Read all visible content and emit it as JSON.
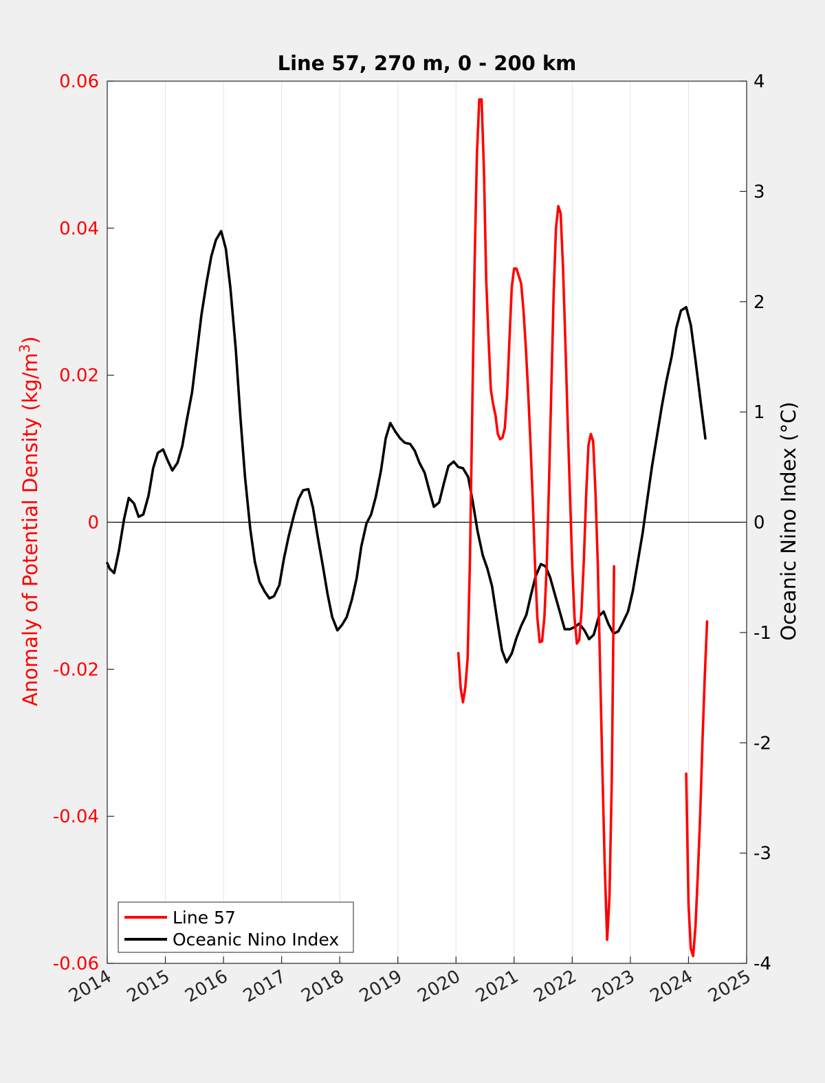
{
  "chart_data": {
    "type": "line",
    "title": "Line 57, 270 m, 0 - 200 km",
    "ylabel_left": "Anomaly of Potential Density (kg/m",
    "ylabel_left_sup": "3",
    "ylabel_left_close": ")",
    "ylabel_right": "Oceanic Nino Index (°C)",
    "xlim": [
      2014,
      2025
    ],
    "ylim_left": [
      -0.06,
      0.06
    ],
    "ylim_right": [
      -4,
      4
    ],
    "x_ticks": [
      "2014",
      "2015",
      "2016",
      "2017",
      "2018",
      "2019",
      "2020",
      "2021",
      "2022",
      "2023",
      "2024",
      "2025"
    ],
    "y_left_ticks": [
      "-0.06",
      "-0.04",
      "-0.02",
      "0",
      "0.02",
      "0.04",
      "0.06"
    ],
    "y_right_ticks": [
      "-4",
      "-3",
      "-2",
      "-1",
      "0",
      "1",
      "2",
      "3",
      "4"
    ],
    "grid_x": true,
    "zero_line": true,
    "legend_position": "bottom-left",
    "colors": {
      "line57": "#ff0000",
      "oni": "#000000",
      "left_axis": "#ff0000",
      "right_axis": "#000000"
    },
    "series": [
      {
        "name": "Line 57",
        "axis": "left",
        "segments": [
          [
            [
              2020.04,
              -0.0178
            ],
            [
              2020.08,
              -0.0225
            ],
            [
              2020.12,
              -0.0245
            ],
            [
              2020.16,
              -0.0225
            ],
            [
              2020.2,
              -0.0185
            ],
            [
              2020.24,
              -0.005
            ],
            [
              2020.28,
              0.015
            ],
            [
              2020.32,
              0.035
            ],
            [
              2020.36,
              0.05
            ],
            [
              2020.4,
              0.0575
            ],
            [
              2020.44,
              0.0575
            ],
            [
              2020.48,
              0.048
            ],
            [
              2020.52,
              0.033
            ],
            [
              2020.56,
              0.025
            ],
            [
              2020.6,
              0.018
            ],
            [
              2020.64,
              0.016
            ],
            [
              2020.68,
              0.0145
            ],
            [
              2020.72,
              0.012
            ],
            [
              2020.76,
              0.0113
            ],
            [
              2020.8,
              0.0115
            ],
            [
              2020.84,
              0.0128
            ],
            [
              2020.88,
              0.0175
            ],
            [
              2020.92,
              0.025
            ],
            [
              2020.96,
              0.032
            ],
            [
              2021.0,
              0.0345
            ],
            [
              2021.04,
              0.0345
            ],
            [
              2021.08,
              0.0335
            ],
            [
              2021.12,
              0.0325
            ],
            [
              2021.16,
              0.029
            ],
            [
              2021.2,
              0.024
            ],
            [
              2021.24,
              0.018
            ],
            [
              2021.28,
              0.011
            ],
            [
              2021.32,
              0.003
            ],
            [
              2021.36,
              -0.006
            ],
            [
              2021.4,
              -0.013
            ],
            [
              2021.44,
              -0.0163
            ],
            [
              2021.48,
              -0.0162
            ],
            [
              2021.52,
              -0.013
            ],
            [
              2021.56,
              -0.006
            ],
            [
              2021.6,
              0.005
            ],
            [
              2021.64,
              0.018
            ],
            [
              2021.68,
              0.031
            ],
            [
              2021.72,
              0.04
            ],
            [
              2021.76,
              0.043
            ],
            [
              2021.8,
              0.042
            ],
            [
              2021.84,
              0.035
            ],
            [
              2021.88,
              0.025
            ],
            [
              2021.92,
              0.014
            ],
            [
              2021.96,
              0.004
            ],
            [
              2022.0,
              -0.006
            ],
            [
              2022.04,
              -0.013
            ],
            [
              2022.08,
              -0.0165
            ],
            [
              2022.12,
              -0.016
            ],
            [
              2022.16,
              -0.012
            ],
            [
              2022.2,
              -0.005
            ],
            [
              2022.24,
              0.004
            ],
            [
              2022.28,
              0.0105
            ],
            [
              2022.32,
              0.012
            ],
            [
              2022.36,
              0.011
            ],
            [
              2022.4,
              0.004
            ],
            [
              2022.44,
              -0.006
            ],
            [
              2022.48,
              -0.02
            ],
            [
              2022.52,
              -0.034
            ],
            [
              2022.56,
              -0.047
            ],
            [
              2022.6,
              -0.0568
            ],
            [
              2022.64,
              -0.051
            ],
            [
              2022.68,
              -0.035
            ],
            [
              2022.72,
              -0.006
            ]
          ],
          [
            [
              2023.96,
              -0.0342
            ],
            [
              2024.0,
              -0.052
            ],
            [
              2024.04,
              -0.058
            ],
            [
              2024.08,
              -0.059
            ],
            [
              2024.12,
              -0.055
            ],
            [
              2024.16,
              -0.048
            ],
            [
              2024.2,
              -0.04
            ],
            [
              2024.24,
              -0.03
            ],
            [
              2024.28,
              -0.021
            ],
            [
              2024.32,
              -0.0135
            ]
          ]
        ]
      },
      {
        "name": "Oceanic Nino Index",
        "axis": "right",
        "segments": [
          [
            [
              2014.0,
              -0.37
            ],
            [
              2014.04,
              -0.42
            ],
            [
              2014.12,
              -0.46
            ],
            [
              2014.2,
              -0.26
            ],
            [
              2014.29,
              0.03
            ],
            [
              2014.37,
              0.22
            ],
            [
              2014.46,
              0.17
            ],
            [
              2014.54,
              0.05
            ],
            [
              2014.62,
              0.07
            ],
            [
              2014.71,
              0.24
            ],
            [
              2014.79,
              0.49
            ],
            [
              2014.87,
              0.63
            ],
            [
              2014.96,
              0.66
            ],
            [
              2015.04,
              0.56
            ],
            [
              2015.12,
              0.47
            ],
            [
              2015.21,
              0.54
            ],
            [
              2015.29,
              0.69
            ],
            [
              2015.37,
              0.93
            ],
            [
              2015.46,
              1.18
            ],
            [
              2015.54,
              1.53
            ],
            [
              2015.62,
              1.88
            ],
            [
              2015.71,
              2.18
            ],
            [
              2015.79,
              2.41
            ],
            [
              2015.87,
              2.56
            ],
            [
              2015.96,
              2.64
            ],
            [
              2016.04,
              2.48
            ],
            [
              2016.12,
              2.12
            ],
            [
              2016.21,
              1.58
            ],
            [
              2016.29,
              0.96
            ],
            [
              2016.37,
              0.41
            ],
            [
              2016.46,
              -0.06
            ],
            [
              2016.54,
              -0.36
            ],
            [
              2016.62,
              -0.54
            ],
            [
              2016.71,
              -0.63
            ],
            [
              2016.79,
              -0.69
            ],
            [
              2016.87,
              -0.67
            ],
            [
              2016.96,
              -0.57
            ],
            [
              2017.04,
              -0.33
            ],
            [
              2017.12,
              -0.13
            ],
            [
              2017.21,
              0.06
            ],
            [
              2017.29,
              0.21
            ],
            [
              2017.37,
              0.29
            ],
            [
              2017.46,
              0.3
            ],
            [
              2017.54,
              0.13
            ],
            [
              2017.62,
              -0.13
            ],
            [
              2017.71,
              -0.4
            ],
            [
              2017.79,
              -0.65
            ],
            [
              2017.87,
              -0.86
            ],
            [
              2017.96,
              -0.98
            ],
            [
              2018.04,
              -0.93
            ],
            [
              2018.12,
              -0.86
            ],
            [
              2018.21,
              -0.7
            ],
            [
              2018.29,
              -0.51
            ],
            [
              2018.37,
              -0.22
            ],
            [
              2018.46,
              -0.01
            ],
            [
              2018.54,
              0.07
            ],
            [
              2018.62,
              0.23
            ],
            [
              2018.71,
              0.47
            ],
            [
              2018.79,
              0.76
            ],
            [
              2018.87,
              0.9
            ],
            [
              2018.96,
              0.82
            ],
            [
              2019.04,
              0.76
            ],
            [
              2019.12,
              0.72
            ],
            [
              2019.21,
              0.71
            ],
            [
              2019.29,
              0.65
            ],
            [
              2019.37,
              0.54
            ],
            [
              2019.46,
              0.45
            ],
            [
              2019.54,
              0.29
            ],
            [
              2019.62,
              0.14
            ],
            [
              2019.71,
              0.18
            ],
            [
              2019.79,
              0.35
            ],
            [
              2019.87,
              0.51
            ],
            [
              2019.96,
              0.55
            ],
            [
              2020.04,
              0.5
            ],
            [
              2020.12,
              0.49
            ],
            [
              2020.21,
              0.41
            ],
            [
              2020.29,
              0.18
            ],
            [
              2020.37,
              -0.08
            ],
            [
              2020.46,
              -0.3
            ],
            [
              2020.54,
              -0.42
            ],
            [
              2020.62,
              -0.58
            ],
            [
              2020.71,
              -0.89
            ],
            [
              2020.79,
              -1.16
            ],
            [
              2020.87,
              -1.27
            ],
            [
              2020.96,
              -1.19
            ],
            [
              2021.04,
              -1.05
            ],
            [
              2021.12,
              -0.94
            ],
            [
              2021.21,
              -0.84
            ],
            [
              2021.29,
              -0.66
            ],
            [
              2021.37,
              -0.49
            ],
            [
              2021.46,
              -0.38
            ],
            [
              2021.54,
              -0.4
            ],
            [
              2021.62,
              -0.5
            ],
            [
              2021.71,
              -0.67
            ],
            [
              2021.79,
              -0.82
            ],
            [
              2021.87,
              -0.97
            ],
            [
              2021.96,
              -0.97
            ],
            [
              2022.04,
              -0.95
            ],
            [
              2022.12,
              -0.92
            ],
            [
              2022.21,
              -0.98
            ],
            [
              2022.29,
              -1.06
            ],
            [
              2022.37,
              -1.02
            ],
            [
              2022.46,
              -0.85
            ],
            [
              2022.54,
              -0.81
            ],
            [
              2022.62,
              -0.92
            ],
            [
              2022.71,
              -1.01
            ],
            [
              2022.79,
              -0.99
            ],
            [
              2022.87,
              -0.91
            ],
            [
              2022.96,
              -0.81
            ],
            [
              2023.04,
              -0.63
            ],
            [
              2023.12,
              -0.38
            ],
            [
              2023.21,
              -0.1
            ],
            [
              2023.29,
              0.2
            ],
            [
              2023.37,
              0.5
            ],
            [
              2023.46,
              0.79
            ],
            [
              2023.54,
              1.05
            ],
            [
              2023.62,
              1.28
            ],
            [
              2023.71,
              1.5
            ],
            [
              2023.79,
              1.76
            ],
            [
              2023.87,
              1.92
            ],
            [
              2023.96,
              1.95
            ],
            [
              2024.04,
              1.79
            ],
            [
              2024.12,
              1.47
            ],
            [
              2024.21,
              1.09
            ],
            [
              2024.29,
              0.76
            ]
          ]
        ]
      }
    ]
  }
}
